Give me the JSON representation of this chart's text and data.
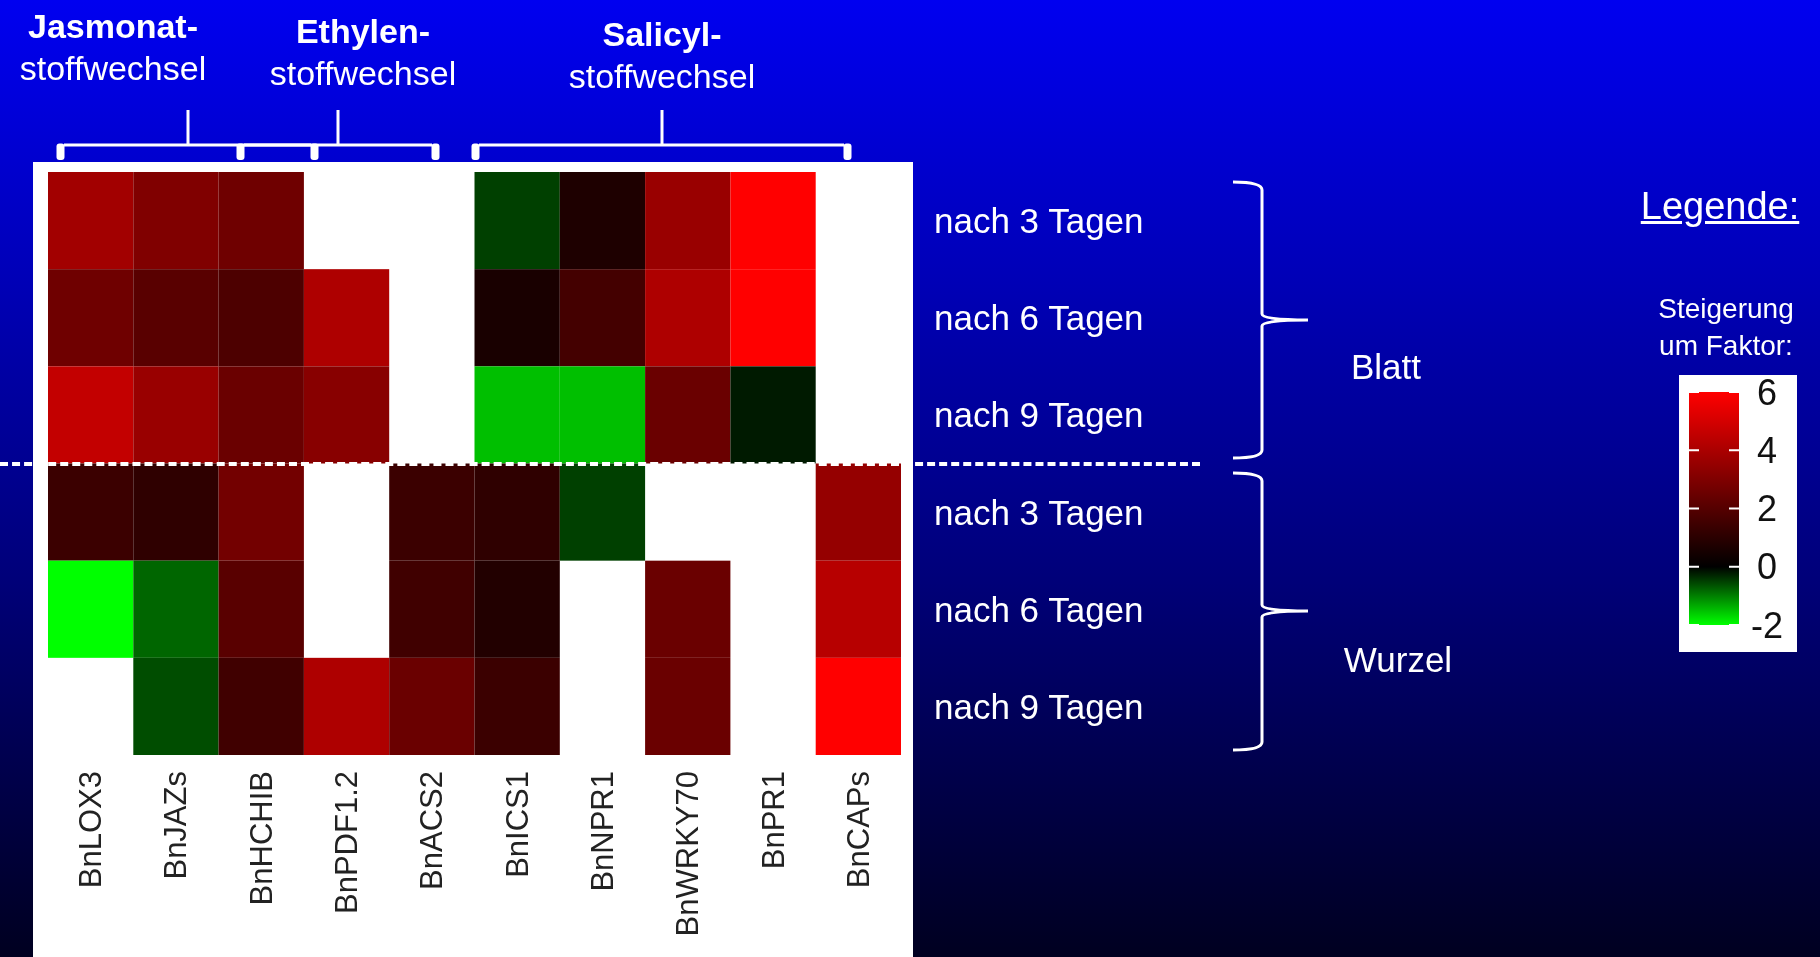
{
  "chart_data": {
    "type": "heatmap",
    "categories": [
      "BnLOX3",
      "BnJAZs",
      "BnHCHIB",
      "BnPDF1.2",
      "BnACS2",
      "BnICS1",
      "BnNPR1",
      "BnWRKY70",
      "BnPR1",
      "BnCAPs"
    ],
    "y_categories": [
      "nach 3 Tagen",
      "nach 6 Tagen",
      "nach 9 Tagen",
      "nach 3 Tagen",
      "nach 6 Tagen",
      "nach 9 Tagen"
    ],
    "cells": [
      [
        3.8,
        3.0,
        2.6,
        null,
        null,
        -0.5,
        0.7,
        3.6,
        6,
        null
      ],
      [
        2.6,
        2.1,
        1.8,
        4.1,
        null,
        0.6,
        1.6,
        4.1,
        6,
        null
      ],
      [
        4.6,
        3.6,
        2.5,
        3.2,
        null,
        -1.5,
        -1.5,
        2.5,
        -0.2,
        null
      ],
      [
        1.4,
        1.1,
        2.7,
        null,
        1.4,
        1.1,
        -0.5,
        null,
        null,
        3.5
      ],
      [
        -2,
        -0.8,
        2.1,
        null,
        1.5,
        0.8,
        null,
        2.5,
        null,
        4.3
      ],
      [
        null,
        -0.6,
        1.5,
        4.1,
        2.5,
        1.4,
        null,
        2.5,
        null,
        6
      ]
    ],
    "clim": [
      -2,
      6
    ],
    "cticks": [
      -2,
      0,
      2,
      4,
      6
    ],
    "legend_title": "Legende:",
    "clabel": "Steigerung\num Faktor:",
    "annotations": [
      "Jasmonat-\nstoffwechsel",
      "Ethylen-\nstoffwechsel",
      "Salicyl-\nstoffwechsel",
      "Blatt",
      "Wurzel"
    ]
  }
}
